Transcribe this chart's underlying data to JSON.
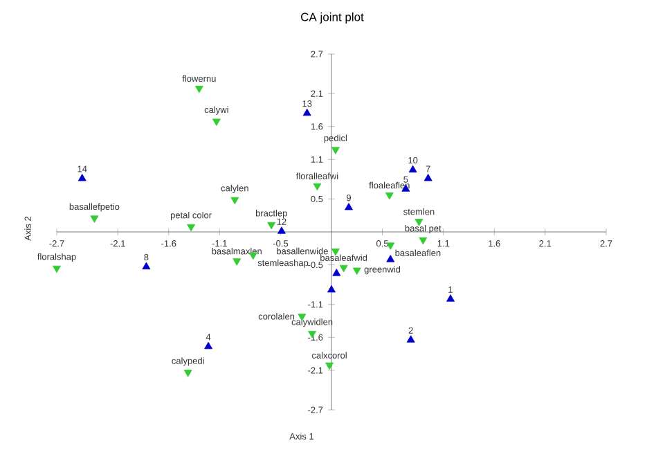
{
  "chart_data": {
    "type": "scatter",
    "title": "CA joint plot",
    "xlabel": "Axis 1",
    "ylabel": "Axis 2",
    "xlim": [
      -2.7,
      2.7
    ],
    "ylim": [
      -2.7,
      2.7
    ],
    "xticks": [
      -2.7,
      -2.1,
      -1.6,
      -1.1,
      -0.5,
      0.5,
      1.1,
      1.6,
      2.1,
      2.7
    ],
    "yticks": [
      -2.7,
      -2.1,
      -1.6,
      -1.1,
      -0.5,
      0.5,
      1.1,
      1.6,
      2.1,
      2.7
    ],
    "series": [
      {
        "color": "#0000cc",
        "marker": "triangle",
        "x": [
          -0.24,
          -2.45,
          -0.49,
          0.17,
          0.73,
          0.8,
          0.95,
          -1.82,
          -1.21,
          1.17,
          0.78,
          0.58,
          0.05,
          0.0
        ],
        "values": [
          1.8,
          0.81,
          0.01,
          0.37,
          0.65,
          0.94,
          0.81,
          -0.53,
          -1.74,
          -1.02,
          -1.64,
          -0.42,
          -0.63,
          -0.88
        ]
      },
      {
        "color": "#33cc33",
        "marker": "triangle-down",
        "x": [
          -1.3,
          -1.13,
          -2.33,
          -1.38,
          -0.95,
          -0.59,
          -0.14,
          0.04,
          0.57,
          0.86,
          0.9,
          0.58,
          0.04,
          0.12,
          0.25,
          -0.77,
          -0.93,
          -2.7,
          -1.41,
          -0.29,
          -0.19,
          -0.02
        ],
        "values": [
          2.18,
          1.68,
          0.21,
          0.08,
          0.49,
          0.11,
          0.7,
          1.25,
          0.56,
          0.16,
          -0.12,
          -0.2,
          -0.29,
          -0.54,
          -0.58,
          -0.35,
          -0.44,
          -0.55,
          -2.13,
          -1.28,
          -1.54,
          -2.02
        ]
      }
    ],
    "annotations": [
      {
        "text": "13",
        "x": -0.24,
        "y": 1.8
      },
      {
        "text": "14",
        "x": -2.45,
        "y": 0.81
      },
      {
        "text": "12",
        "x": -0.49,
        "y": 0.01
      },
      {
        "text": "9",
        "x": 0.17,
        "y": 0.37
      },
      {
        "text": "5",
        "x": 0.73,
        "y": 0.65
      },
      {
        "text": "10",
        "x": 0.8,
        "y": 0.94
      },
      {
        "text": "7",
        "x": 0.95,
        "y": 0.81
      },
      {
        "text": "8",
        "x": -1.82,
        "y": -0.53
      },
      {
        "text": "4",
        "x": -1.21,
        "y": -1.74
      },
      {
        "text": "1",
        "x": 1.17,
        "y": -1.02
      },
      {
        "text": "2",
        "x": 0.78,
        "y": -1.64
      },
      {
        "text": "flowernu",
        "x": -1.3,
        "y": 2.18
      },
      {
        "text": "calywi",
        "x": -1.13,
        "y": 1.68
      },
      {
        "text": "basallefpetio",
        "x": -2.33,
        "y": 0.21
      },
      {
        "text": "petal color",
        "x": -1.38,
        "y": 0.08
      },
      {
        "text": "calylen",
        "x": -0.95,
        "y": 0.49
      },
      {
        "text": "bractlep",
        "x": -0.59,
        "y": 0.11
      },
      {
        "text": "floralleafwi",
        "x": -0.14,
        "y": 0.7
      },
      {
        "text": "pedicl",
        "x": 0.04,
        "y": 1.25
      },
      {
        "text": "floaleaflen",
        "x": 0.57,
        "y": 0.56
      },
      {
        "text": "stemlen",
        "x": 0.86,
        "y": 0.16
      },
      {
        "text": "basal pet",
        "x": 0.9,
        "y": -0.12
      },
      {
        "text": "basaleaflen",
        "x": 0.58,
        "y": -0.2
      },
      {
        "text": "basallenwide",
        "x": 0.04,
        "y": -0.29
      },
      {
        "text": "basaleafwid",
        "x": 0.12,
        "y": -0.54
      },
      {
        "text": "greenwid",
        "x": 0.25,
        "y": -0.58
      },
      {
        "text": "stemleashap",
        "x": -0.77,
        "y": -0.35
      },
      {
        "text": "basalmaxlen",
        "x": -0.93,
        "y": -0.44
      },
      {
        "text": "floralshap",
        "x": -2.7,
        "y": -0.55
      },
      {
        "text": "calypedi",
        "x": -1.41,
        "y": -2.13
      },
      {
        "text": "corolalen",
        "x": -0.29,
        "y": -1.28
      },
      {
        "text": "calywidlen",
        "x": -0.19,
        "y": -1.54
      },
      {
        "text": "calxcorol",
        "x": -0.02,
        "y": -2.02
      }
    ]
  }
}
